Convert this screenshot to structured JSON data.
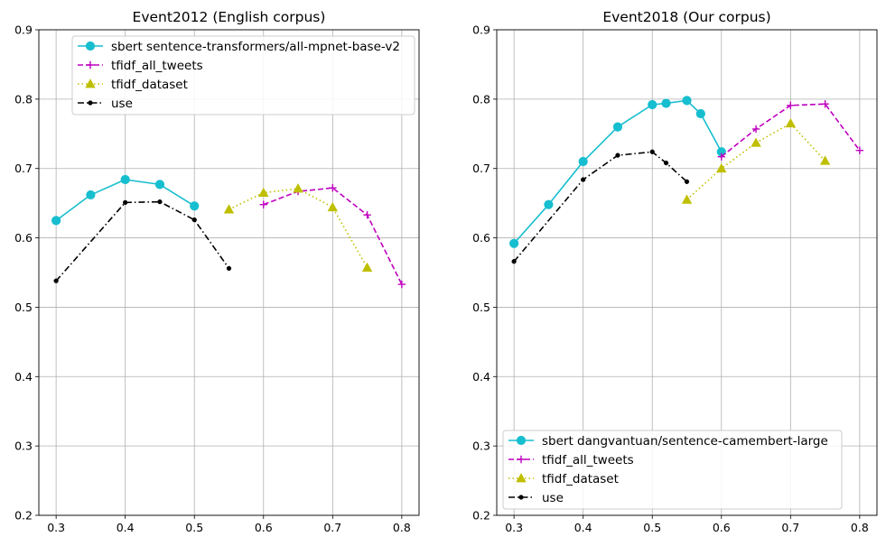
{
  "chart_data": [
    {
      "type": "line",
      "title": "Event2012 (English corpus)",
      "xlabel": "",
      "ylabel": "",
      "xlim": [
        0.275,
        0.825
      ],
      "ylim": [
        0.2,
        0.9
      ],
      "xticks": [
        0.3,
        0.4,
        0.5,
        0.6,
        0.7,
        0.8
      ],
      "yticks": [
        0.2,
        0.3,
        0.4,
        0.5,
        0.6,
        0.7,
        0.8,
        0.9
      ],
      "xtick_labels": [
        "0.3",
        "0.4",
        "0.5",
        "0.6",
        "0.7",
        "0.8"
      ],
      "ytick_labels": [
        "0.2",
        "0.3",
        "0.4",
        "0.5",
        "0.6",
        "0.7",
        "0.8",
        "0.9"
      ],
      "grid": true,
      "legend_position": "top-right",
      "series": [
        {
          "name": "sbert sentence-transformers/all-mpnet-base-v2",
          "color": "#17becf",
          "linestyle": "solid",
          "marker": "circle",
          "x": [
            0.3,
            0.35,
            0.4,
            0.45,
            0.5
          ],
          "y": [
            0.625,
            0.662,
            0.684,
            0.677,
            0.646
          ]
        },
        {
          "name": "tfidf_all_tweets",
          "color": "#bf00bf",
          "linestyle": "dashed",
          "marker": "plus",
          "x": [
            0.6,
            0.65,
            0.7,
            0.75,
            0.8
          ],
          "y": [
            0.648,
            0.667,
            0.672,
            0.633,
            0.533
          ]
        },
        {
          "name": "tfidf_dataset",
          "color": "#bfbf00",
          "linestyle": "dotted",
          "marker": "triangle",
          "x": [
            0.55,
            0.6,
            0.65,
            0.7,
            0.75
          ],
          "y": [
            0.641,
            0.665,
            0.671,
            0.644,
            0.557
          ]
        },
        {
          "name": "use",
          "color": "#000000",
          "linestyle": "dashdot",
          "marker": "point",
          "x": [
            0.3,
            0.4,
            0.45,
            0.5,
            0.55
          ],
          "y": [
            0.538,
            0.651,
            0.652,
            0.626,
            0.556
          ]
        }
      ]
    },
    {
      "type": "line",
      "title": "Event2018 (Our corpus)",
      "xlabel": "",
      "ylabel": "",
      "xlim": [
        0.275,
        0.825
      ],
      "ylim": [
        0.2,
        0.9
      ],
      "xticks": [
        0.3,
        0.4,
        0.5,
        0.6,
        0.7,
        0.8
      ],
      "yticks": [
        0.2,
        0.3,
        0.4,
        0.5,
        0.6,
        0.7,
        0.8,
        0.9
      ],
      "xtick_labels": [
        "0.3",
        "0.4",
        "0.5",
        "0.6",
        "0.7",
        "0.8"
      ],
      "ytick_labels": [
        "0.2",
        "0.3",
        "0.4",
        "0.5",
        "0.6",
        "0.7",
        "0.8",
        "0.9"
      ],
      "grid": true,
      "legend_position": "bottom-left",
      "series": [
        {
          "name": "sbert dangvantuan/sentence-camembert-large",
          "color": "#17becf",
          "linestyle": "solid",
          "marker": "circle",
          "x": [
            0.3,
            0.35,
            0.4,
            0.45,
            0.5,
            0.52,
            0.55,
            0.57,
            0.6
          ],
          "y": [
            0.592,
            0.648,
            0.71,
            0.76,
            0.792,
            0.794,
            0.798,
            0.779,
            0.724
          ]
        },
        {
          "name": "tfidf_all_tweets",
          "color": "#bf00bf",
          "linestyle": "dashed",
          "marker": "plus",
          "x": [
            0.6,
            0.65,
            0.7,
            0.75,
            0.8
          ],
          "y": [
            0.717,
            0.757,
            0.791,
            0.793,
            0.726
          ]
        },
        {
          "name": "tfidf_dataset",
          "color": "#bfbf00",
          "linestyle": "dotted",
          "marker": "triangle",
          "x": [
            0.55,
            0.6,
            0.65,
            0.7,
            0.75
          ],
          "y": [
            0.655,
            0.7,
            0.737,
            0.765,
            0.711
          ]
        },
        {
          "name": "use",
          "color": "#000000",
          "linestyle": "dashdot",
          "marker": "point",
          "x": [
            0.3,
            0.4,
            0.45,
            0.5,
            0.52,
            0.55
          ],
          "y": [
            0.566,
            0.684,
            0.719,
            0.724,
            0.708,
            0.681
          ]
        }
      ]
    }
  ]
}
